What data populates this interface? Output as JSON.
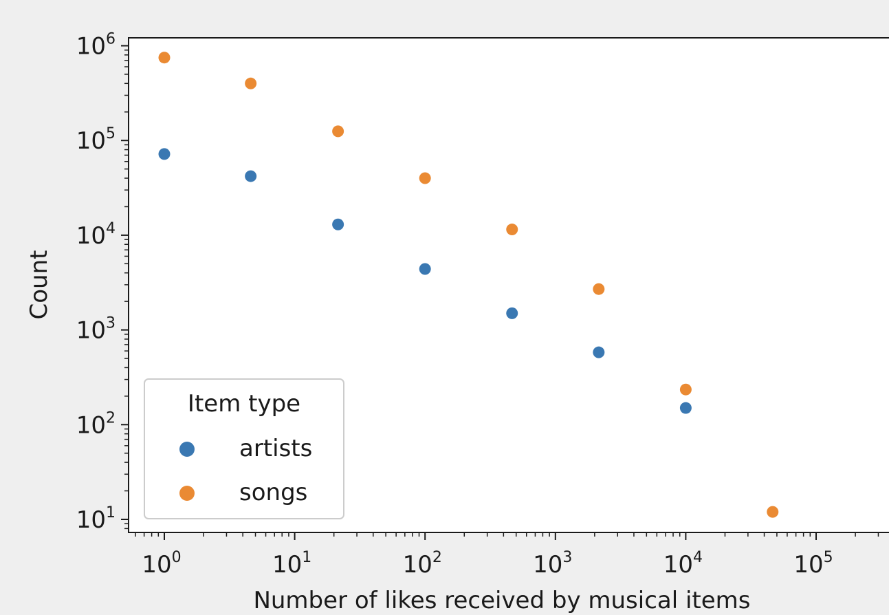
{
  "chart_data": {
    "type": "scatter",
    "xlabel": "Number of likes received by musical items",
    "ylabel": "Count",
    "xscale": "log",
    "yscale": "log",
    "xlim": [
      0.5,
      400000
    ],
    "ylim": [
      7,
      1400000
    ],
    "grid": false,
    "x_ticks": [
      {
        "base": "10",
        "exp": "0",
        "value": 1
      },
      {
        "base": "10",
        "exp": "1",
        "value": 10
      },
      {
        "base": "10",
        "exp": "2",
        "value": 100
      },
      {
        "base": "10",
        "exp": "3",
        "value": 1000
      },
      {
        "base": "10",
        "exp": "4",
        "value": 10000
      },
      {
        "base": "10",
        "exp": "5",
        "value": 100000
      }
    ],
    "y_ticks": [
      {
        "base": "10",
        "exp": "1",
        "value": 10
      },
      {
        "base": "10",
        "exp": "2",
        "value": 100
      },
      {
        "base": "10",
        "exp": "3",
        "value": 1000
      },
      {
        "base": "10",
        "exp": "4",
        "value": 10000
      },
      {
        "base": "10",
        "exp": "5",
        "value": 100000
      },
      {
        "base": "10",
        "exp": "6",
        "value": 1000000
      }
    ],
    "legend": {
      "title": "Item type",
      "placement": "lower-left"
    },
    "series": [
      {
        "name": "artists",
        "color": "#3a78b2",
        "points": [
          [
            1,
            72000
          ],
          [
            4.6,
            42000
          ],
          [
            21.5,
            13000
          ],
          [
            100,
            4400
          ],
          [
            465,
            1500
          ],
          [
            2150,
            580
          ],
          [
            10000,
            150
          ]
        ]
      },
      {
        "name": "songs",
        "color": "#ea8a33",
        "points": [
          [
            1,
            750000
          ],
          [
            4.6,
            400000
          ],
          [
            21.5,
            125000
          ],
          [
            100,
            40000
          ],
          [
            465,
            11500
          ],
          [
            2150,
            2700
          ],
          [
            10000,
            235
          ],
          [
            46400,
            12
          ]
        ]
      }
    ]
  }
}
